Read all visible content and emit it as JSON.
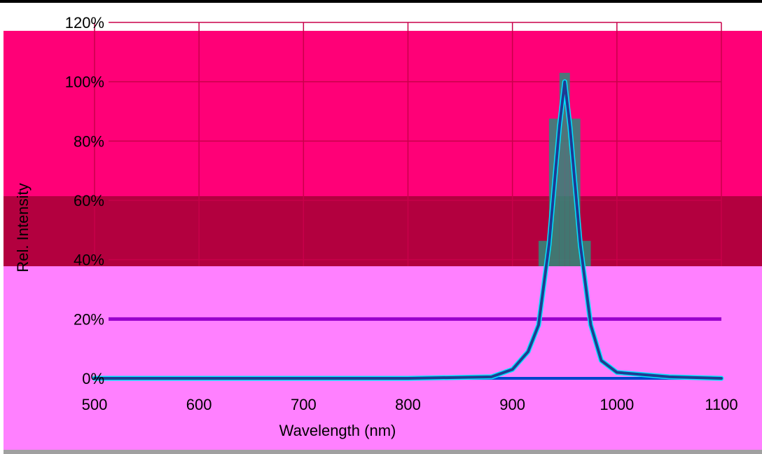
{
  "chart_data": {
    "type": "line",
    "title": "",
    "xlabel": "Wavelength (nm)",
    "ylabel": "Rel. Intensity",
    "x_ticks": [
      "500",
      "600",
      "700",
      "800",
      "900",
      "1000",
      "1100"
    ],
    "y_ticks": [
      "0%",
      "20%",
      "40%",
      "60%",
      "80%",
      "100%",
      "120%"
    ],
    "xlim": [
      500,
      1100
    ],
    "ylim": [
      0,
      120
    ],
    "grid": true,
    "legend": "none",
    "series": [
      {
        "color": "#1f3a93",
        "x": [
          500,
          600,
          700,
          800,
          880,
          900,
          915,
          925,
          935,
          945,
          950,
          955,
          965,
          975,
          985,
          1000,
          1050,
          1100
        ],
        "y": [
          0,
          0,
          0,
          0,
          0.5,
          3,
          9,
          18,
          45,
          85,
          100,
          85,
          45,
          18,
          6,
          2,
          0.5,
          0
        ]
      }
    ]
  },
  "colors": {
    "background_top": "#ff0077",
    "band_middle": "#b3003f",
    "background_bottom": "#ff80ff",
    "grid_top": "#c8004a",
    "grid_bottom": "#9900cc",
    "baseline": "#0044cc",
    "teal": "#2e8b7a",
    "cyan": "#00e5ff"
  }
}
